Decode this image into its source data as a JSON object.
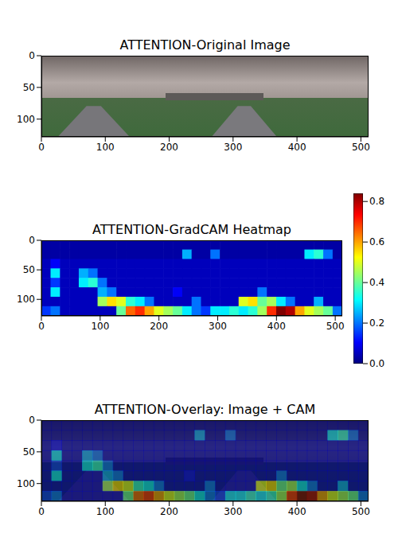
{
  "chart_data": [
    {
      "type": "image",
      "title": "ATTENTION-Original Image",
      "xlim": [
        0,
        512
      ],
      "ylim": [
        0,
        128
      ],
      "xticks": [
        0,
        100,
        200,
        300,
        400,
        500
      ],
      "yticks": [
        0,
        50,
        100
      ]
    },
    {
      "type": "heatmap",
      "title": "ATTENTION-GradCAM Heatmap",
      "xlim": [
        0,
        512
      ],
      "ylim": [
        0,
        128
      ],
      "xticks": [
        0,
        100,
        200,
        300,
        400,
        500
      ],
      "yticks": [
        0,
        50,
        100
      ],
      "color_range": [
        0,
        0.84
      ],
      "color_ticks": [
        {
          "value": 0,
          "label": "0.0"
        },
        {
          "value": 0.2,
          "label": "0.2"
        },
        {
          "value": 0.4,
          "label": "0.4"
        },
        {
          "value": 0.6,
          "label": "0.6"
        },
        {
          "value": 0.8,
          "label": "0.8"
        }
      ],
      "cells": [
        [
          0.03,
          0.03,
          0.03,
          0.03,
          0.03,
          0.03,
          0.03,
          0.03,
          0.03,
          0.03,
          0.03,
          0.03,
          0.03,
          0.03,
          0.03,
          0.03,
          0.03,
          0.03,
          0.03,
          0.03,
          0.03,
          0.03,
          0.03,
          0.03,
          0.03,
          0.03,
          0.03,
          0.03,
          0.03,
          0.03,
          0.03,
          0.03
        ],
        [
          0.03,
          0.03,
          0.03,
          0.03,
          0.03,
          0.03,
          0.03,
          0.03,
          0.03,
          0.03,
          0.03,
          0.03,
          0.03,
          0.03,
          0.03,
          0.25,
          0.03,
          0.03,
          0.2,
          0.03,
          0.03,
          0.03,
          0.03,
          0.03,
          0.03,
          0.03,
          0.03,
          0.03,
          0.3,
          0.35,
          0.2,
          0.03
        ],
        [
          0.05,
          0.1,
          0.05,
          0.05,
          0.05,
          0.05,
          0.05,
          0.05,
          0.05,
          0.05,
          0.05,
          0.05,
          0.05,
          0.05,
          0.05,
          0.05,
          0.05,
          0.05,
          0.05,
          0.05,
          0.05,
          0.05,
          0.05,
          0.05,
          0.05,
          0.05,
          0.05,
          0.05,
          0.05,
          0.05,
          0.05,
          0.05
        ],
        [
          0.05,
          0.3,
          0.05,
          0.05,
          0.25,
          0.2,
          0.05,
          0.05,
          0.05,
          0.05,
          0.05,
          0.05,
          0.05,
          0.05,
          0.05,
          0.05,
          0.05,
          0.05,
          0.05,
          0.05,
          0.05,
          0.05,
          0.05,
          0.05,
          0.05,
          0.05,
          0.05,
          0.05,
          0.05,
          0.05,
          0.05,
          0.05
        ],
        [
          0.05,
          0.15,
          0.05,
          0.05,
          0.3,
          0.35,
          0.2,
          0.05,
          0.05,
          0.05,
          0.05,
          0.05,
          0.05,
          0.05,
          0.05,
          0.05,
          0.05,
          0.05,
          0.05,
          0.05,
          0.05,
          0.05,
          0.05,
          0.05,
          0.05,
          0.05,
          0.05,
          0.05,
          0.05,
          0.05,
          0.05,
          0.05
        ],
        [
          0.05,
          0.3,
          0.05,
          0.05,
          0.05,
          0.05,
          0.25,
          0.2,
          0.05,
          0.05,
          0.05,
          0.05,
          0.05,
          0.05,
          0.1,
          0.05,
          0.05,
          0.05,
          0.05,
          0.05,
          0.05,
          0.05,
          0.05,
          0.2,
          0.05,
          0.05,
          0.05,
          0.05,
          0.05,
          0.05,
          0.05,
          0.05
        ],
        [
          0.05,
          0.05,
          0.05,
          0.05,
          0.05,
          0.05,
          0.45,
          0.55,
          0.5,
          0.35,
          0.3,
          0.2,
          0.05,
          0.05,
          0.05,
          0.05,
          0.2,
          0.05,
          0.05,
          0.05,
          0.05,
          0.5,
          0.55,
          0.4,
          0.45,
          0.3,
          0.2,
          0.05,
          0.05,
          0.25,
          0.05,
          0.05
        ],
        [
          0.15,
          0.2,
          0.05,
          0.05,
          0.05,
          0.05,
          0.05,
          0.05,
          0.4,
          0.65,
          0.7,
          0.6,
          0.5,
          0.45,
          0.4,
          0.3,
          0.2,
          0.15,
          0.3,
          0.3,
          0.35,
          0.3,
          0.35,
          0.45,
          0.7,
          0.84,
          0.8,
          0.6,
          0.5,
          0.45,
          0.4,
          0.2
        ]
      ]
    },
    {
      "type": "overlay",
      "title": "ATTENTION-Overlay: Image + CAM",
      "xlim": [
        0,
        512
      ],
      "ylim": [
        0,
        128
      ],
      "xticks": [
        0,
        100,
        200,
        300,
        400,
        500
      ],
      "yticks": [
        0,
        50,
        100
      ],
      "color_range": [
        0,
        0.84
      ],
      "cells": [
        [
          0.03,
          0.03,
          0.03,
          0.03,
          0.03,
          0.03,
          0.03,
          0.03,
          0.03,
          0.03,
          0.03,
          0.03,
          0.03,
          0.03,
          0.03,
          0.03,
          0.03,
          0.03,
          0.03,
          0.03,
          0.03,
          0.03,
          0.03,
          0.03,
          0.03,
          0.03,
          0.03,
          0.03,
          0.03,
          0.03,
          0.03,
          0.03
        ],
        [
          0.03,
          0.03,
          0.03,
          0.03,
          0.03,
          0.03,
          0.03,
          0.03,
          0.03,
          0.03,
          0.03,
          0.03,
          0.03,
          0.03,
          0.03,
          0.25,
          0.03,
          0.03,
          0.2,
          0.03,
          0.03,
          0.03,
          0.03,
          0.03,
          0.03,
          0.03,
          0.03,
          0.03,
          0.3,
          0.35,
          0.2,
          0.03
        ],
        [
          0.05,
          0.1,
          0.05,
          0.05,
          0.05,
          0.05,
          0.05,
          0.05,
          0.05,
          0.05,
          0.05,
          0.05,
          0.05,
          0.05,
          0.05,
          0.05,
          0.05,
          0.05,
          0.05,
          0.05,
          0.05,
          0.05,
          0.05,
          0.05,
          0.05,
          0.05,
          0.05,
          0.05,
          0.05,
          0.05,
          0.05,
          0.05
        ],
        [
          0.05,
          0.3,
          0.05,
          0.05,
          0.25,
          0.2,
          0.05,
          0.05,
          0.05,
          0.05,
          0.05,
          0.05,
          0.05,
          0.05,
          0.05,
          0.05,
          0.05,
          0.05,
          0.05,
          0.05,
          0.05,
          0.05,
          0.05,
          0.05,
          0.05,
          0.05,
          0.05,
          0.05,
          0.05,
          0.05,
          0.05,
          0.05
        ],
        [
          0.05,
          0.15,
          0.05,
          0.05,
          0.3,
          0.35,
          0.2,
          0.05,
          0.05,
          0.05,
          0.05,
          0.05,
          0.05,
          0.05,
          0.05,
          0.05,
          0.05,
          0.05,
          0.05,
          0.05,
          0.05,
          0.05,
          0.05,
          0.05,
          0.05,
          0.05,
          0.05,
          0.05,
          0.05,
          0.05,
          0.05,
          0.05
        ],
        [
          0.05,
          0.3,
          0.05,
          0.05,
          0.05,
          0.05,
          0.25,
          0.2,
          0.05,
          0.05,
          0.05,
          0.05,
          0.05,
          0.05,
          0.1,
          0.05,
          0.05,
          0.05,
          0.05,
          0.05,
          0.05,
          0.05,
          0.05,
          0.2,
          0.05,
          0.05,
          0.05,
          0.05,
          0.05,
          0.05,
          0.05,
          0.05
        ],
        [
          0.05,
          0.05,
          0.05,
          0.05,
          0.05,
          0.05,
          0.45,
          0.55,
          0.5,
          0.35,
          0.3,
          0.2,
          0.05,
          0.05,
          0.05,
          0.05,
          0.2,
          0.05,
          0.05,
          0.05,
          0.05,
          0.5,
          0.55,
          0.4,
          0.45,
          0.3,
          0.2,
          0.05,
          0.05,
          0.25,
          0.05,
          0.05
        ],
        [
          0.15,
          0.2,
          0.05,
          0.05,
          0.05,
          0.05,
          0.05,
          0.05,
          0.4,
          0.65,
          0.7,
          0.6,
          0.5,
          0.45,
          0.4,
          0.3,
          0.2,
          0.15,
          0.3,
          0.3,
          0.35,
          0.3,
          0.35,
          0.45,
          0.7,
          0.84,
          0.8,
          0.6,
          0.5,
          0.45,
          0.4,
          0.2
        ]
      ]
    }
  ]
}
